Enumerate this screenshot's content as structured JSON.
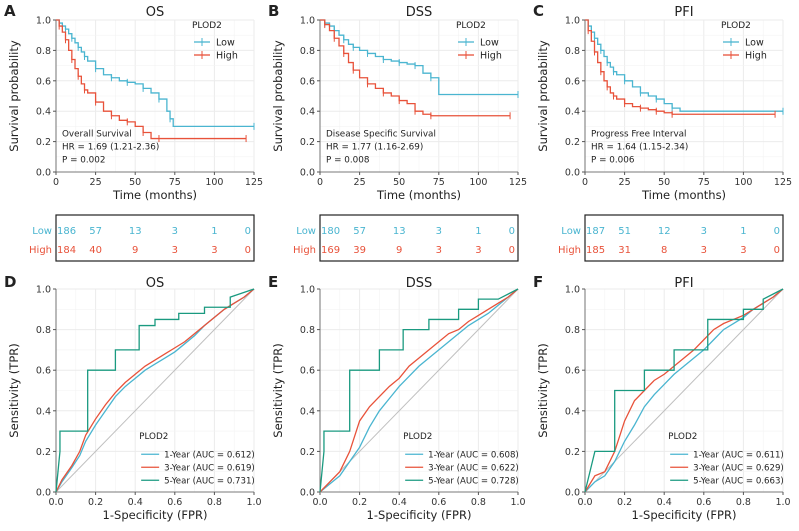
{
  "colors": {
    "low": "#4AB5D0",
    "high": "#E8523A",
    "five": "#1A9A80",
    "diag": "#BFBFBF",
    "grid": "#EBEBEB",
    "ink": "#222222"
  },
  "chart_data": [
    {
      "type": "line",
      "kind": "km",
      "letter": "A",
      "title": "OS",
      "xlabel": "Time (months)",
      "ylabel": "Survival probability",
      "xlim": [
        0,
        125
      ],
      "ylim": [
        0,
        1
      ],
      "xticks": [
        "0",
        "25",
        "50",
        "75",
        "100",
        "125"
      ],
      "yticks": [
        "0.0",
        "0.2",
        "0.4",
        "0.6",
        "0.8",
        "1.0"
      ],
      "legend_title": "PLOD2",
      "annotations": [
        "Overall Survival",
        "HR = 1.69 (1.21-2.36)",
        "P = 0.002"
      ],
      "series": [
        {
          "name": "Low",
          "color_key": "low",
          "x": [
            0,
            2,
            4,
            6,
            8,
            10,
            12,
            14,
            16,
            18,
            20,
            25,
            30,
            35,
            40,
            45,
            50,
            55,
            60,
            65,
            70,
            72,
            74,
            125
          ],
          "y": [
            1,
            0.98,
            0.96,
            0.94,
            0.91,
            0.88,
            0.85,
            0.82,
            0.79,
            0.76,
            0.73,
            0.68,
            0.64,
            0.62,
            0.6,
            0.59,
            0.58,
            0.55,
            0.52,
            0.48,
            0.4,
            0.35,
            0.3,
            0.3
          ]
        },
        {
          "name": "High",
          "color_key": "high",
          "x": [
            0,
            2,
            4,
            6,
            8,
            10,
            12,
            14,
            16,
            18,
            20,
            25,
            30,
            35,
            40,
            45,
            50,
            55,
            60,
            65,
            120
          ],
          "y": [
            1,
            0.96,
            0.92,
            0.87,
            0.8,
            0.74,
            0.68,
            0.63,
            0.58,
            0.54,
            0.52,
            0.46,
            0.4,
            0.37,
            0.34,
            0.33,
            0.3,
            0.26,
            0.22,
            0.22,
            0.22
          ]
        }
      ],
      "risk_table": {
        "rows": [
          {
            "label": "Low",
            "color_key": "low",
            "values": [
              "186",
              "57",
              "13",
              "3",
              "1",
              "0"
            ]
          },
          {
            "label": "High",
            "color_key": "high",
            "values": [
              "184",
              "40",
              "9",
              "3",
              "3",
              "0"
            ]
          }
        ]
      }
    },
    {
      "type": "line",
      "kind": "km",
      "letter": "B",
      "title": "DSS",
      "xlabel": "Time (months)",
      "ylabel": "Survival probability",
      "xlim": [
        0,
        125
      ],
      "ylim": [
        0,
        1
      ],
      "xticks": [
        "0",
        "25",
        "50",
        "75",
        "100",
        "125"
      ],
      "yticks": [
        "0.0",
        "0.2",
        "0.4",
        "0.6",
        "0.8",
        "1.0"
      ],
      "legend_title": "PLOD2",
      "annotations": [
        "Disease Specific Survival",
        "HR = 1.77 (1.16-2.69)",
        "P = 0.008"
      ],
      "series": [
        {
          "name": "Low",
          "color_key": "low",
          "x": [
            0,
            3,
            6,
            9,
            12,
            15,
            18,
            21,
            25,
            30,
            35,
            40,
            45,
            50,
            55,
            60,
            65,
            70,
            75,
            125
          ],
          "y": [
            1,
            0.98,
            0.96,
            0.93,
            0.9,
            0.87,
            0.84,
            0.82,
            0.8,
            0.78,
            0.76,
            0.74,
            0.73,
            0.72,
            0.71,
            0.7,
            0.65,
            0.62,
            0.51,
            0.51
          ]
        },
        {
          "name": "High",
          "color_key": "high",
          "x": [
            0,
            3,
            6,
            9,
            12,
            15,
            18,
            21,
            25,
            30,
            35,
            40,
            45,
            50,
            55,
            60,
            65,
            70,
            120
          ],
          "y": [
            1,
            0.97,
            0.93,
            0.88,
            0.83,
            0.78,
            0.72,
            0.67,
            0.62,
            0.58,
            0.55,
            0.52,
            0.5,
            0.47,
            0.45,
            0.4,
            0.38,
            0.37,
            0.37
          ]
        }
      ],
      "risk_table": {
        "rows": [
          {
            "label": "Low",
            "color_key": "low",
            "values": [
              "180",
              "57",
              "13",
              "3",
              "1",
              "0"
            ]
          },
          {
            "label": "High",
            "color_key": "high",
            "values": [
              "169",
              "39",
              "9",
              "3",
              "3",
              "0"
            ]
          }
        ]
      }
    },
    {
      "type": "line",
      "kind": "km",
      "letter": "C",
      "title": "PFI",
      "xlabel": "Time (months)",
      "ylabel": "Survival probability",
      "xlim": [
        0,
        125
      ],
      "ylim": [
        0,
        1
      ],
      "xticks": [
        "0",
        "25",
        "50",
        "75",
        "100",
        "125"
      ],
      "yticks": [
        "0.0",
        "0.2",
        "0.4",
        "0.6",
        "0.8",
        "1.0"
      ],
      "legend_title": "PLOD2",
      "annotations": [
        "Progress Free Interval",
        "HR = 1.64 (1.15-2.34)",
        "P = 0.006"
      ],
      "series": [
        {
          "name": "Low",
          "color_key": "low",
          "x": [
            0,
            2,
            4,
            6,
            8,
            10,
            12,
            14,
            16,
            18,
            20,
            25,
            30,
            35,
            40,
            45,
            50,
            55,
            60,
            125
          ],
          "y": [
            1,
            0.96,
            0.92,
            0.88,
            0.84,
            0.8,
            0.76,
            0.72,
            0.69,
            0.66,
            0.64,
            0.6,
            0.56,
            0.52,
            0.5,
            0.48,
            0.45,
            0.42,
            0.4,
            0.4
          ]
        },
        {
          "name": "High",
          "color_key": "high",
          "x": [
            0,
            2,
            4,
            6,
            8,
            10,
            12,
            14,
            16,
            18,
            20,
            25,
            30,
            35,
            40,
            45,
            50,
            55,
            60,
            120
          ],
          "y": [
            1,
            0.93,
            0.86,
            0.79,
            0.72,
            0.66,
            0.6,
            0.56,
            0.52,
            0.5,
            0.48,
            0.45,
            0.43,
            0.42,
            0.41,
            0.4,
            0.39,
            0.38,
            0.38,
            0.38
          ]
        }
      ],
      "risk_table": {
        "rows": [
          {
            "label": "Low",
            "color_key": "low",
            "values": [
              "187",
              "51",
              "12",
              "3",
              "1",
              "0"
            ]
          },
          {
            "label": "High",
            "color_key": "high",
            "values": [
              "185",
              "31",
              "8",
              "3",
              "3",
              "0"
            ]
          }
        ]
      }
    },
    {
      "type": "line",
      "kind": "roc",
      "letter": "D",
      "title": "OS",
      "xlabel": "1-Specificity (FPR)",
      "ylabel": "Sensitivity (TPR)",
      "xlim": [
        0,
        1
      ],
      "ylim": [
        0,
        1
      ],
      "xticks": [
        "0.0",
        "0.2",
        "0.4",
        "0.6",
        "0.8",
        "1.0"
      ],
      "yticks": [
        "0.0",
        "0.2",
        "0.4",
        "0.6",
        "0.8",
        "1.0"
      ],
      "legend_title": "PLOD2",
      "series": [
        {
          "name": "1-Year (AUC = 0.612)",
          "color_key": "low",
          "x": [
            0,
            0.03,
            0.08,
            0.12,
            0.15,
            0.2,
            0.25,
            0.3,
            0.35,
            0.4,
            0.45,
            0.5,
            0.55,
            0.6,
            0.65,
            0.7,
            0.75,
            0.8,
            0.85,
            0.9,
            0.95,
            1
          ],
          "y": [
            0,
            0.05,
            0.12,
            0.18,
            0.25,
            0.33,
            0.4,
            0.47,
            0.52,
            0.56,
            0.6,
            0.63,
            0.66,
            0.69,
            0.73,
            0.77,
            0.82,
            0.86,
            0.9,
            0.93,
            0.96,
            1
          ]
        },
        {
          "name": "3-Year (AUC = 0.619)",
          "color_key": "high",
          "x": [
            0,
            0.03,
            0.08,
            0.12,
            0.15,
            0.2,
            0.25,
            0.3,
            0.35,
            0.4,
            0.45,
            0.5,
            0.55,
            0.6,
            0.65,
            0.7,
            0.75,
            0.8,
            0.85,
            0.9,
            0.95,
            1
          ],
          "y": [
            0,
            0.06,
            0.13,
            0.2,
            0.28,
            0.36,
            0.43,
            0.49,
            0.54,
            0.58,
            0.62,
            0.65,
            0.68,
            0.71,
            0.74,
            0.78,
            0.82,
            0.86,
            0.9,
            0.93,
            0.96,
            1
          ]
        },
        {
          "name": "5-Year (AUC = 0.731)",
          "color_key": "five",
          "x": [
            0,
            0.02,
            0.02,
            0.16,
            0.16,
            0.3,
            0.3,
            0.42,
            0.42,
            0.5,
            0.5,
            0.62,
            0.62,
            0.75,
            0.75,
            0.88,
            0.88,
            1
          ],
          "y": [
            0,
            0.2,
            0.3,
            0.3,
            0.6,
            0.6,
            0.7,
            0.7,
            0.82,
            0.82,
            0.85,
            0.85,
            0.88,
            0.88,
            0.91,
            0.91,
            0.96,
            1
          ]
        }
      ]
    },
    {
      "type": "line",
      "kind": "roc",
      "letter": "E",
      "title": "DSS",
      "xlabel": "1-Specificity (FPR)",
      "ylabel": "Sensitivity (TPR)",
      "xlim": [
        0,
        1
      ],
      "ylim": [
        0,
        1
      ],
      "xticks": [
        "0.0",
        "0.2",
        "0.4",
        "0.6",
        "0.8",
        "1.0"
      ],
      "yticks": [
        "0.0",
        "0.2",
        "0.4",
        "0.6",
        "0.8",
        "1.0"
      ],
      "legend_title": "PLOD2",
      "series": [
        {
          "name": "1-Year (AUC = 0.608)",
          "color_key": "low",
          "x": [
            0,
            0.05,
            0.1,
            0.15,
            0.2,
            0.25,
            0.3,
            0.35,
            0.4,
            0.45,
            0.5,
            0.55,
            0.6,
            0.65,
            0.7,
            0.75,
            0.8,
            0.85,
            0.9,
            0.95,
            1
          ],
          "y": [
            0,
            0.04,
            0.08,
            0.15,
            0.22,
            0.32,
            0.4,
            0.46,
            0.52,
            0.57,
            0.62,
            0.66,
            0.7,
            0.74,
            0.78,
            0.82,
            0.85,
            0.88,
            0.92,
            0.96,
            1
          ]
        },
        {
          "name": "3-Year (AUC = 0.622)",
          "color_key": "high",
          "x": [
            0,
            0.05,
            0.1,
            0.15,
            0.2,
            0.25,
            0.3,
            0.35,
            0.4,
            0.45,
            0.5,
            0.55,
            0.6,
            0.65,
            0.7,
            0.75,
            0.8,
            0.85,
            0.9,
            0.95,
            1
          ],
          "y": [
            0,
            0.05,
            0.1,
            0.2,
            0.35,
            0.42,
            0.47,
            0.52,
            0.56,
            0.62,
            0.66,
            0.7,
            0.74,
            0.78,
            0.8,
            0.84,
            0.87,
            0.9,
            0.93,
            0.96,
            1
          ]
        },
        {
          "name": "5-Year (AUC = 0.728)",
          "color_key": "five",
          "x": [
            0,
            0.02,
            0.02,
            0.15,
            0.15,
            0.3,
            0.3,
            0.42,
            0.42,
            0.55,
            0.55,
            0.7,
            0.7,
            0.8,
            0.8,
            0.9,
            1
          ],
          "y": [
            0,
            0.2,
            0.3,
            0.3,
            0.6,
            0.6,
            0.7,
            0.7,
            0.8,
            0.8,
            0.85,
            0.85,
            0.9,
            0.9,
            0.95,
            0.95,
            1
          ]
        }
      ]
    },
    {
      "type": "line",
      "kind": "roc",
      "letter": "F",
      "title": "PFI",
      "xlabel": "1-Specificity (FPR)",
      "ylabel": "Sensitivity (TPR)",
      "xlim": [
        0,
        1
      ],
      "ylim": [
        0,
        1
      ],
      "xticks": [
        "0.0",
        "0.2",
        "0.4",
        "0.6",
        "0.8",
        "1.0"
      ],
      "yticks": [
        "0.0",
        "0.2",
        "0.4",
        "0.6",
        "0.8",
        "1.0"
      ],
      "legend_title": "PLOD2",
      "series": [
        {
          "name": "1-Year (AUC = 0.611)",
          "color_key": "low",
          "x": [
            0,
            0.05,
            0.1,
            0.15,
            0.2,
            0.25,
            0.3,
            0.35,
            0.4,
            0.45,
            0.5,
            0.55,
            0.6,
            0.65,
            0.7,
            0.75,
            0.8,
            0.85,
            0.9,
            0.95,
            1
          ],
          "y": [
            0,
            0.05,
            0.08,
            0.15,
            0.25,
            0.33,
            0.42,
            0.48,
            0.53,
            0.58,
            0.62,
            0.66,
            0.7,
            0.75,
            0.8,
            0.83,
            0.86,
            0.9,
            0.93,
            0.96,
            1
          ]
        },
        {
          "name": "3-Year (AUC = 0.629)",
          "color_key": "high",
          "x": [
            0,
            0.05,
            0.1,
            0.15,
            0.2,
            0.25,
            0.3,
            0.35,
            0.4,
            0.45,
            0.5,
            0.55,
            0.6,
            0.65,
            0.7,
            0.75,
            0.8,
            0.85,
            0.9,
            0.95,
            1
          ],
          "y": [
            0,
            0.08,
            0.1,
            0.2,
            0.35,
            0.45,
            0.5,
            0.55,
            0.58,
            0.62,
            0.66,
            0.7,
            0.75,
            0.8,
            0.83,
            0.85,
            0.87,
            0.9,
            0.93,
            0.96,
            1
          ]
        },
        {
          "name": "5-Year (AUC = 0.663)",
          "color_key": "five",
          "x": [
            0,
            0.05,
            0.05,
            0.15,
            0.15,
            0.3,
            0.3,
            0.45,
            0.45,
            0.62,
            0.62,
            0.8,
            0.8,
            0.9,
            0.9,
            1
          ],
          "y": [
            0,
            0.2,
            0.2,
            0.2,
            0.5,
            0.5,
            0.6,
            0.6,
            0.7,
            0.7,
            0.85,
            0.85,
            0.9,
            0.9,
            0.95,
            1
          ]
        }
      ]
    }
  ]
}
